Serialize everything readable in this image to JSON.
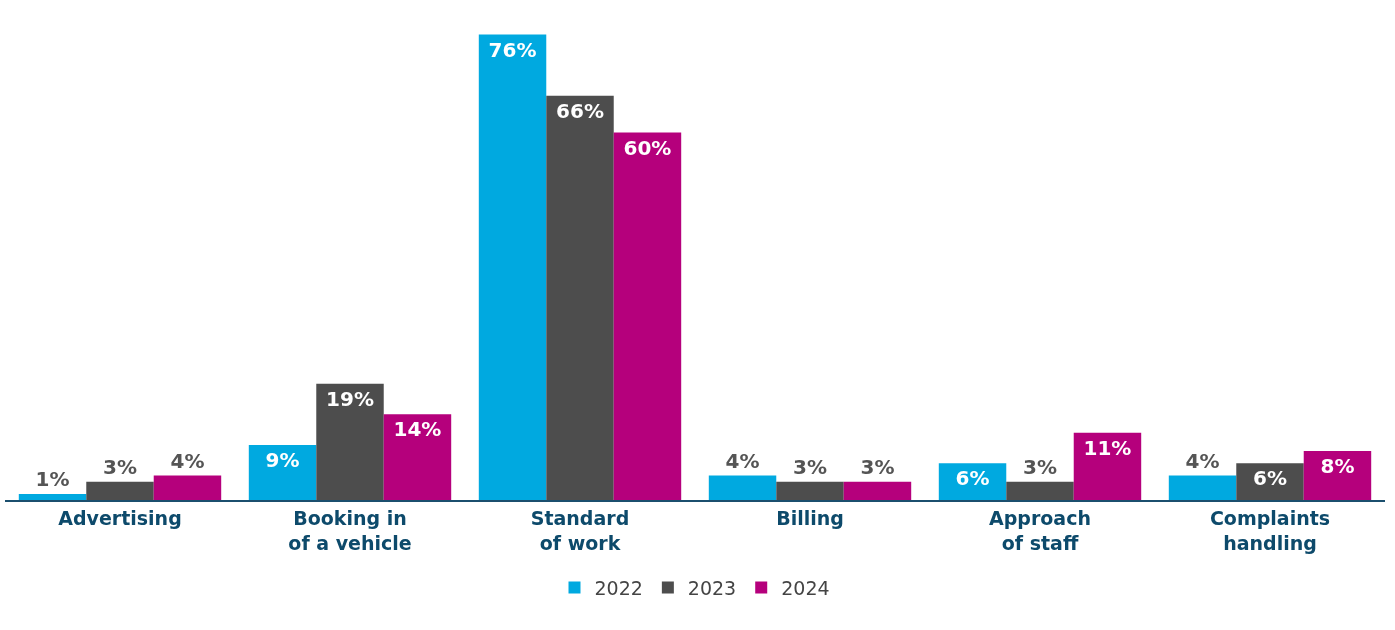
{
  "chart_data": {
    "type": "bar",
    "categories": [
      "Advertising",
      "Booking in of a vehicle",
      "Standard of work",
      "Billing",
      "Approach of staff",
      "Complaints handling"
    ],
    "series": [
      {
        "name": "2022",
        "color": "#00a9e0",
        "values": [
          1,
          9,
          76,
          4,
          6,
          4
        ],
        "value_labels": [
          "1%",
          "9%",
          "76%",
          "4%",
          "6%",
          "4%"
        ]
      },
      {
        "name": "2023",
        "color": "#4d4d4d",
        "values": [
          3,
          19,
          66,
          3,
          3,
          6
        ],
        "value_labels": [
          "3%",
          "19%",
          "66%",
          "3%",
          "3%",
          "6%"
        ]
      },
      {
        "name": "2024",
        "color": "#b5007c",
        "values": [
          4,
          14,
          60,
          3,
          11,
          8
        ],
        "value_labels": [
          "4%",
          "14%",
          "60%",
          "3%",
          "11%",
          "8%"
        ]
      }
    ],
    "legend": "bottom"
  }
}
